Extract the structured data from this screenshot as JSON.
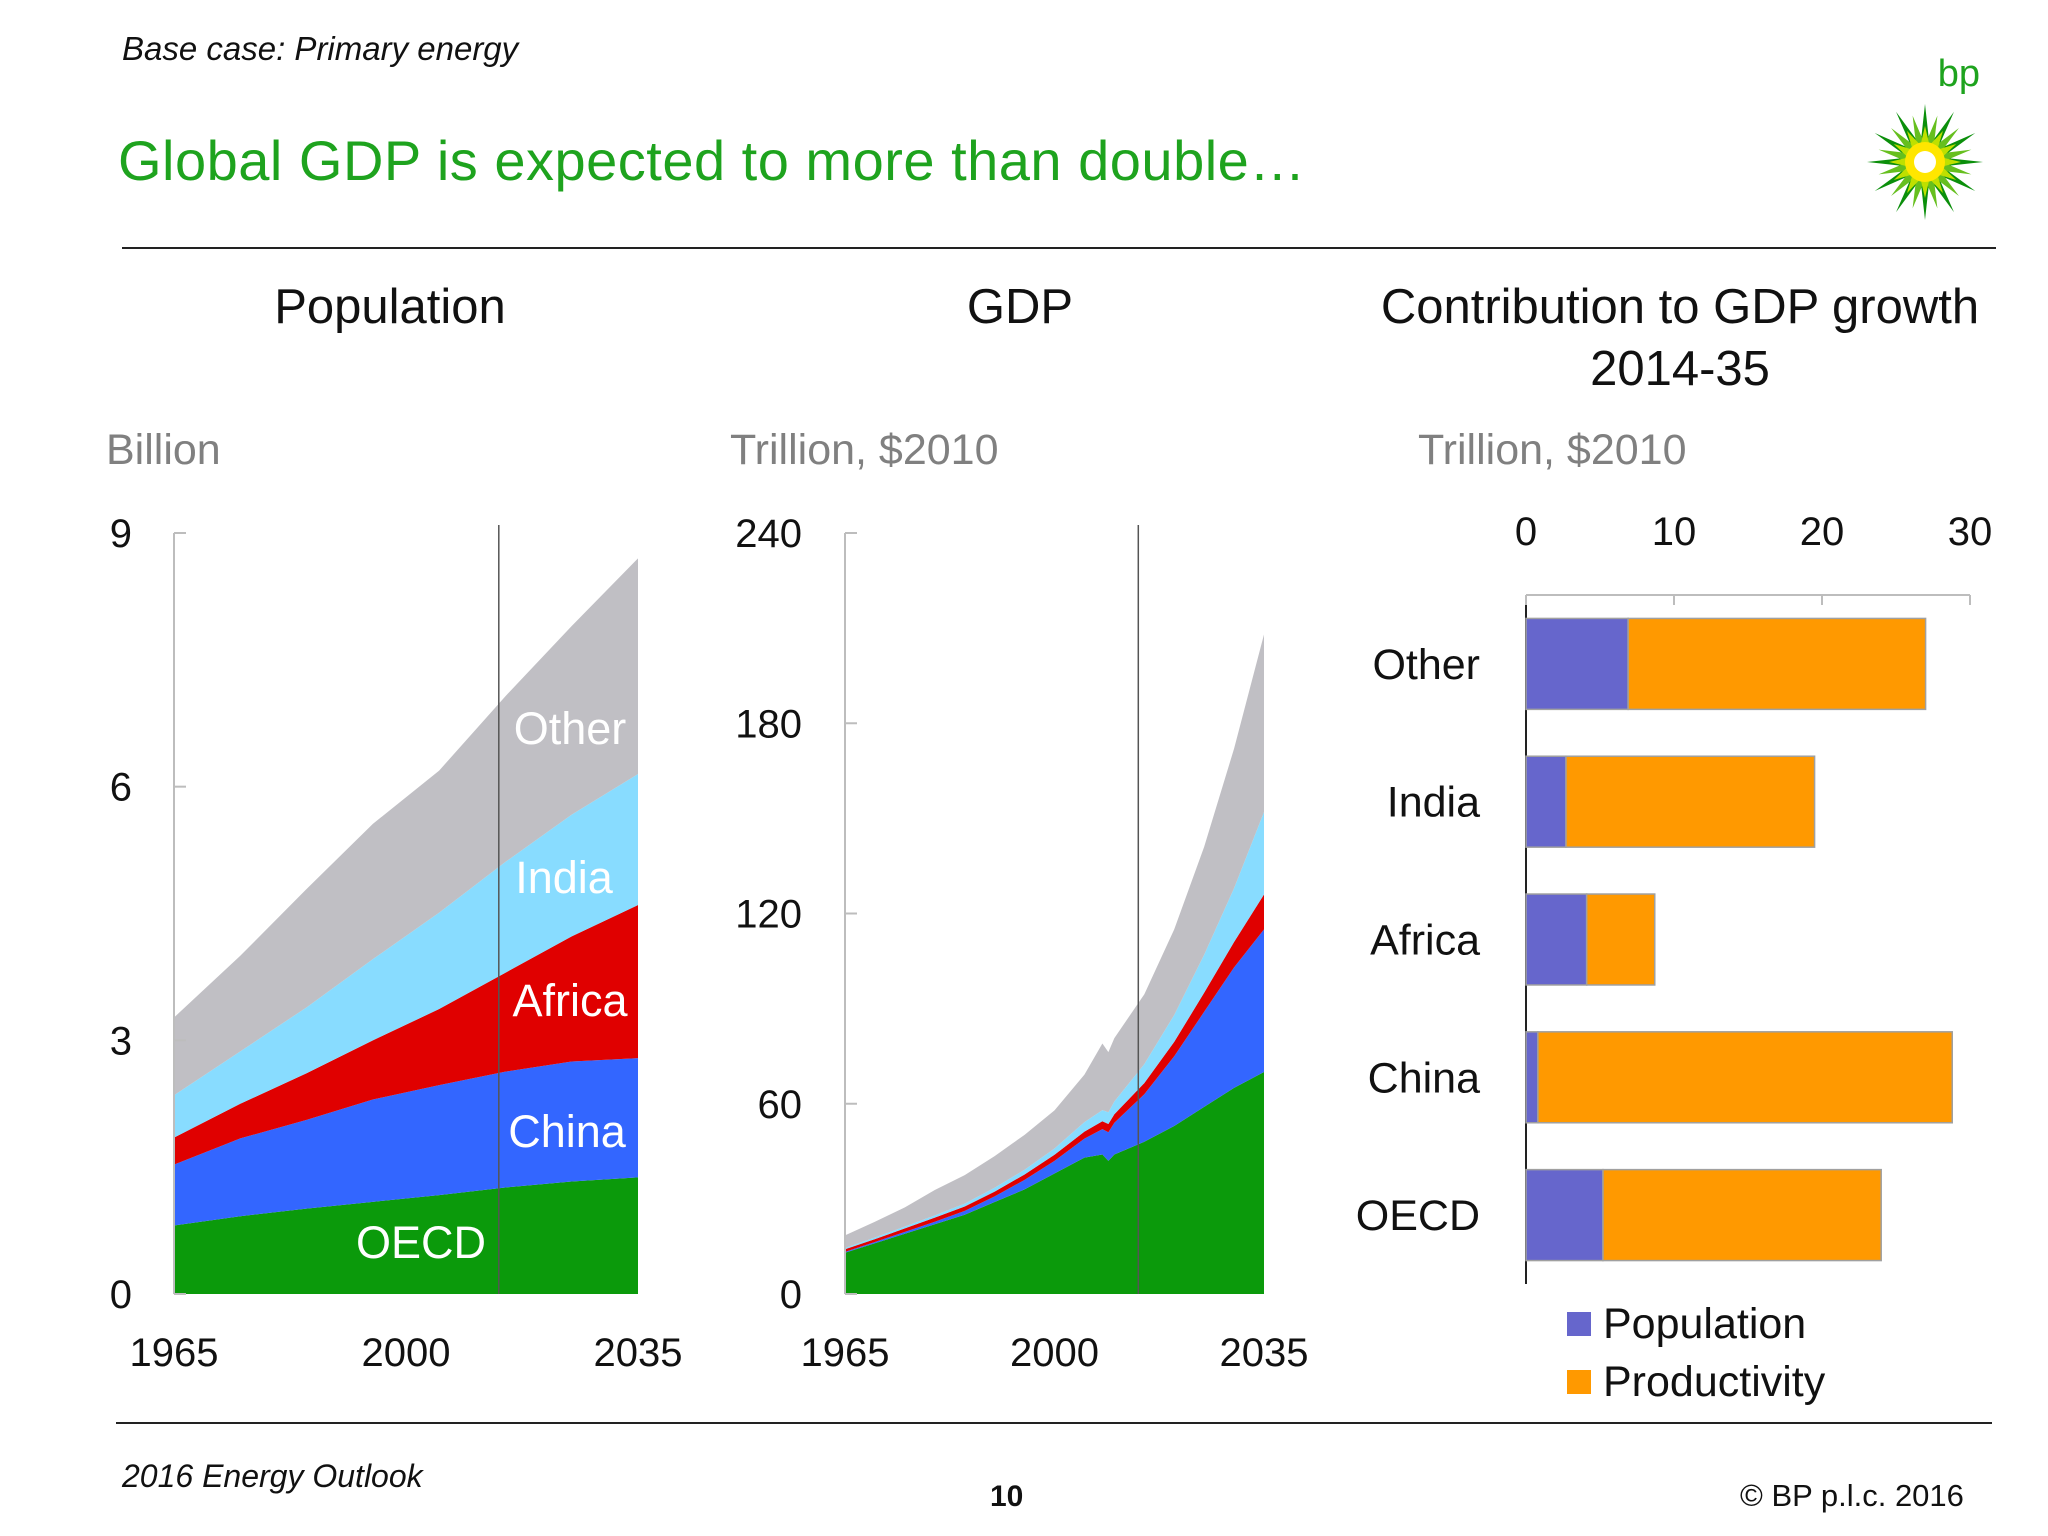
{
  "header": {
    "kicker": "Base case: Primary energy",
    "headline": "Global GDP is expected to more than double…",
    "logo_text": "bp"
  },
  "footer": {
    "left": "2016 Energy Outlook",
    "page_number": "10",
    "copyright": "© BP p.l.c. 2016"
  },
  "colors": {
    "oecd": "#0b9a0b",
    "china": "#3366ff",
    "africa": "#e00000",
    "india": "#88dcff",
    "other": "#c0bfc4",
    "population": "#6666cc",
    "productivity": "#ff9900",
    "headline": "#1ea31e"
  },
  "chart_data": [
    {
      "id": "population",
      "type": "area",
      "title": "Population",
      "ylabel": "Billion",
      "x": [
        1965,
        1975,
        1985,
        1995,
        2005,
        2015,
        2025,
        2035
      ],
      "xticks": [
        "1965",
        "2000",
        "2035"
      ],
      "yticks": [
        "0",
        "3",
        "6",
        "9"
      ],
      "xlim": [
        1965,
        2035
      ],
      "ylim": [
        0,
        9
      ],
      "divider_x": 2014,
      "series": [
        {
          "name": "OECD",
          "values": [
            0.81,
            0.92,
            1.01,
            1.09,
            1.17,
            1.26,
            1.33,
            1.38
          ]
        },
        {
          "name": "China",
          "values": [
            0.72,
            0.92,
            1.05,
            1.21,
            1.3,
            1.37,
            1.42,
            1.41
          ]
        },
        {
          "name": "Africa",
          "values": [
            0.32,
            0.41,
            0.55,
            0.7,
            0.9,
            1.17,
            1.48,
            1.81
          ]
        },
        {
          "name": "India",
          "values": [
            0.5,
            0.62,
            0.78,
            0.96,
            1.14,
            1.31,
            1.44,
            1.55
          ]
        },
        {
          "name": "Other",
          "values": [
            0.92,
            1.13,
            1.4,
            1.6,
            1.68,
            1.96,
            2.23,
            2.55
          ]
        }
      ]
    },
    {
      "id": "gdp",
      "type": "area",
      "title": "GDP",
      "ylabel": "Trillion, $2010",
      "x": [
        1965,
        1970,
        1975,
        1980,
        1985,
        1990,
        1995,
        2000,
        2005,
        2008,
        2009,
        2010,
        2015,
        2020,
        2025,
        2030,
        2035
      ],
      "xticks": [
        "1965",
        "2000",
        "2035"
      ],
      "yticks": [
        "0",
        "60",
        "120",
        "180",
        "240"
      ],
      "xlim": [
        1965,
        2035
      ],
      "ylim": [
        0,
        240
      ],
      "divider_x": 2014,
      "series": [
        {
          "name": "OECD",
          "values": [
            13,
            16,
            19,
            22,
            25,
            29,
            33,
            38,
            43,
            44,
            42,
            44,
            48,
            53,
            59,
            65,
            70
          ]
        },
        {
          "name": "China",
          "values": [
            0.3,
            0.4,
            0.6,
            0.8,
            1.2,
            1.8,
            3,
            4,
            6,
            8,
            9,
            10,
            15,
            22,
            30,
            38,
            45
          ]
        },
        {
          "name": "Africa",
          "values": [
            0.8,
            0.9,
            1.1,
            1.3,
            1.4,
            1.5,
            1.7,
            1.9,
            2.2,
            2.5,
            2.6,
            2.7,
            3.5,
            4.5,
            6,
            8,
            11
          ]
        },
        {
          "name": "India",
          "values": [
            0.4,
            0.5,
            0.6,
            0.7,
            0.9,
            1.2,
            1.5,
            2,
            3,
            3.5,
            3.7,
            4,
            6,
            8.5,
            12,
            17,
            26
          ]
        },
        {
          "name": "Other",
          "values": [
            4,
            5,
            6,
            8,
            9,
            10,
            11,
            12,
            15,
            21,
            19,
            20,
            22,
            27,
            34,
            44,
            56
          ]
        }
      ]
    },
    {
      "id": "contribution",
      "type": "bar",
      "orientation": "horizontal",
      "stacked": true,
      "title": "Contribution to GDP growth 2014-35",
      "xlabel": "Trillion, $2010",
      "categories": [
        "Other",
        "India",
        "Africa",
        "China",
        "OECD"
      ],
      "xticks": [
        "0",
        "10",
        "20",
        "30"
      ],
      "xlim": [
        0,
        30
      ],
      "legend_position": "bottom",
      "series": [
        {
          "name": "Population",
          "values": [
            6.9,
            2.7,
            4.1,
            0.8,
            5.2
          ]
        },
        {
          "name": "Productivity",
          "values": [
            20.1,
            16.8,
            4.6,
            28.0,
            18.8
          ]
        }
      ]
    }
  ]
}
